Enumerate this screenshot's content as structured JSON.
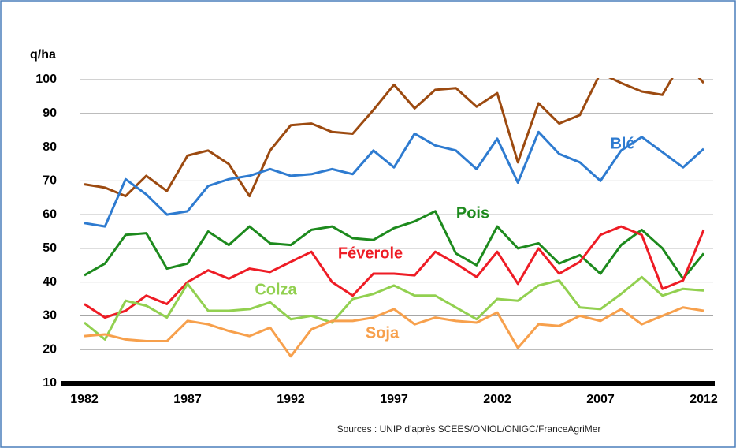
{
  "chart_data": {
    "type": "line",
    "y_label": "q/ha",
    "source": "Sources : UNIP d'après SCEES/ONIOL/ONIGC/FranceAgriMer",
    "x": [
      1982,
      1983,
      1984,
      1985,
      1986,
      1987,
      1988,
      1989,
      1990,
      1991,
      1992,
      1993,
      1994,
      1995,
      1996,
      1997,
      1998,
      1999,
      2000,
      2001,
      2002,
      2003,
      2004,
      2005,
      2006,
      2007,
      2008,
      2009,
      2010,
      2011,
      2012
    ],
    "xlim": [
      1982,
      2012
    ],
    "xticks": [
      1982,
      1987,
      1992,
      1997,
      2002,
      2007,
      2012
    ],
    "ylim": [
      10,
      100
    ],
    "yticks": [
      10,
      20,
      30,
      40,
      50,
      60,
      70,
      80,
      90,
      100
    ],
    "grid": true,
    "series": [
      {
        "color": "#9c4a10",
        "values": [
          69,
          68,
          65.5,
          71.5,
          67,
          77.5,
          79,
          75,
          65.5,
          79,
          86.5,
          87,
          84.5,
          84,
          91,
          98.5,
          91.5,
          97,
          97.5,
          92,
          96,
          75.5,
          93,
          87,
          89.5,
          102,
          99,
          96.5,
          95.5,
          106,
          99
        ]
      },
      {
        "name": "Blé",
        "color": "#2e7bd0",
        "values": [
          57.5,
          56.5,
          70.5,
          66,
          60,
          61,
          68.5,
          70.5,
          71.5,
          73.5,
          71.5,
          72,
          73.5,
          72,
          79,
          74,
          84,
          80.5,
          79,
          73.5,
          82.5,
          69.5,
          84.5,
          78,
          75.5,
          70,
          79,
          83,
          78.5,
          74,
          79.5
        ]
      },
      {
        "name": "Pois",
        "color": "#1d8a1d",
        "values": [
          42,
          45.5,
          54,
          54.5,
          44,
          45.5,
          55,
          51,
          56.5,
          51.5,
          51,
          55.5,
          56.5,
          53,
          52.5,
          56,
          58,
          61,
          48.5,
          45,
          56.5,
          50,
          51.5,
          45.5,
          48,
          42.5,
          51,
          55.5,
          50,
          41,
          48.5
        ]
      },
      {
        "name": "Féverole",
        "color": "#ee1c25",
        "values": [
          33.5,
          29.5,
          31.5,
          36,
          33.5,
          40,
          43.5,
          41,
          44,
          43,
          46,
          49,
          40,
          36,
          42.5,
          42.5,
          42,
          49,
          45.5,
          41.5,
          49,
          39.5,
          50,
          42.5,
          46,
          54,
          56.5,
          54,
          38,
          40.5,
          55.5
        ]
      },
      {
        "name": "Colza",
        "color": "#92d050",
        "values": [
          28,
          23,
          34.5,
          33,
          29.5,
          39.5,
          31.5,
          31.5,
          32,
          34,
          29,
          30,
          28,
          35,
          36.5,
          39,
          36,
          36,
          32.5,
          29,
          35,
          34.5,
          39,
          40.5,
          32.5,
          32,
          36.5,
          41.5,
          36,
          38,
          37.5
        ]
      },
      {
        "name": "Soja",
        "color": "#f7a04c",
        "values": [
          24,
          24.5,
          23,
          22.5,
          22.5,
          28.5,
          27.5,
          25.5,
          24,
          26.5,
          18,
          26,
          28.5,
          28.5,
          29.5,
          32,
          27.5,
          29.5,
          28.5,
          28,
          31,
          20.5,
          27.5,
          27,
          30,
          28.5,
          32,
          27.5,
          30,
          32.5,
          31.5
        ]
      }
    ]
  }
}
